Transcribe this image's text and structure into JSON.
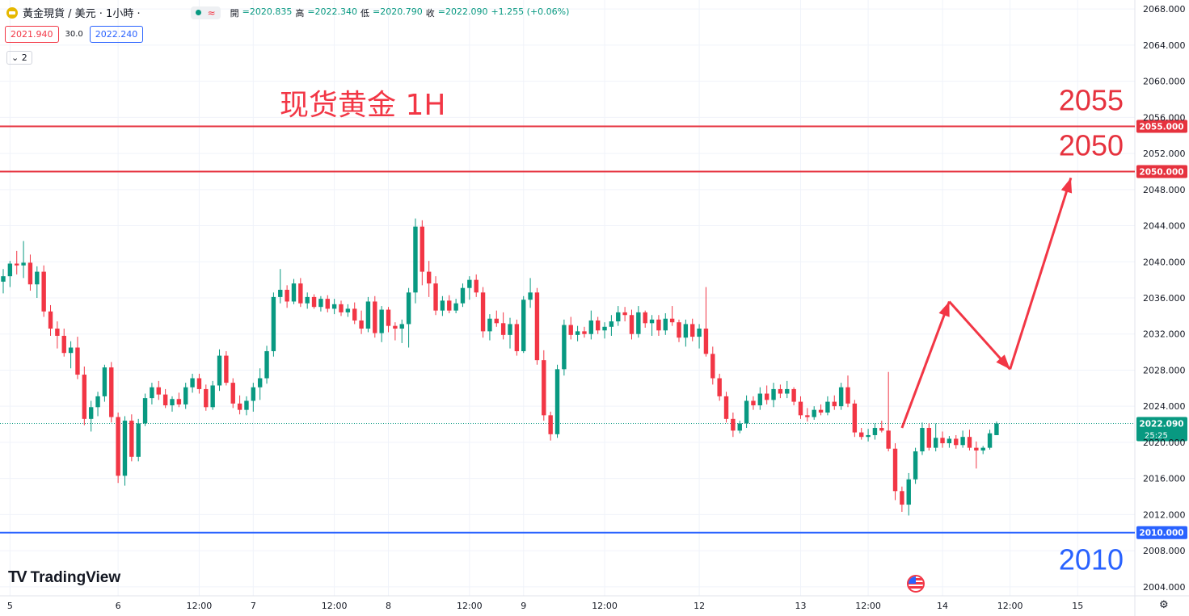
{
  "header": {
    "symbol": "黃金現貨 / 美元 · 1小時 ·",
    "ohlc": {
      "open_label": "開",
      "open": "=2020.835",
      "high_label": "高",
      "high": "=2022.340",
      "low_label": "低",
      "low": "=2020.790",
      "close_label": "收",
      "close": "=2022.090",
      "change": "+1.255 (+0.06%)"
    },
    "sell_price": "2021.940",
    "spread": "30.0",
    "buy_price": "2022.240",
    "indicator_count": "2"
  },
  "brand": {
    "logo_text": "TradingView"
  },
  "colors": {
    "up": "#089981",
    "down": "#f23645",
    "blue": "#2962ff",
    "red_line": "#e6323e",
    "annotation_red": "#f23645"
  },
  "chart_data": {
    "type": "candlestick",
    "title": "现货黄金 1H",
    "ylim": [
      2003,
      2069
    ],
    "y_ticks": [
      "2068.000",
      "2064.000",
      "2060.000",
      "2056.000",
      "2052.000",
      "2048.000",
      "2044.000",
      "2040.000",
      "2036.000",
      "2032.000",
      "2028.000",
      "2024.000",
      "2020.000",
      "2016.000",
      "2012.000",
      "2008.000",
      "2004.000"
    ],
    "x_ticks": [
      {
        "label": "5",
        "i": 1
      },
      {
        "label": "6",
        "i": 17
      },
      {
        "label": "12:00",
        "i": 29
      },
      {
        "label": "7",
        "i": 37
      },
      {
        "label": "12:00",
        "i": 49
      },
      {
        "label": "8",
        "i": 57
      },
      {
        "label": "12:00",
        "i": 69
      },
      {
        "label": "9",
        "i": 77
      },
      {
        "label": "12:00",
        "i": 89
      },
      {
        "label": "12",
        "i": 103
      },
      {
        "label": "13",
        "i": 118
      },
      {
        "label": "12:00",
        "i": 128
      },
      {
        "label": "14",
        "i": 139
      },
      {
        "label": "12:00",
        "i": 149
      },
      {
        "label": "15",
        "i": 159
      }
    ],
    "candles": [
      [
        2037.8,
        2039.2,
        2036.5,
        2038.4
      ],
      [
        2038.4,
        2040.1,
        2037.2,
        2039.8
      ],
      [
        2039.8,
        2041.2,
        2038.6,
        2039.6
      ],
      [
        2039.6,
        2042.3,
        2038.2,
        2039.9
      ],
      [
        2039.9,
        2040.8,
        2036.8,
        2037.5
      ],
      [
        2037.5,
        2039.5,
        2036.0,
        2038.9
      ],
      [
        2038.9,
        2039.6,
        2033.9,
        2034.5
      ],
      [
        2034.5,
        2035.2,
        2031.8,
        2032.6
      ],
      [
        2032.6,
        2033.4,
        2030.4,
        2031.8
      ],
      [
        2031.8,
        2032.6,
        2029.5,
        2029.9
      ],
      [
        2029.9,
        2031.2,
        2028.2,
        2030.5
      ],
      [
        2030.5,
        2031.7,
        2027.0,
        2027.5
      ],
      [
        2027.5,
        2028.4,
        2021.9,
        2022.6
      ],
      [
        2022.6,
        2024.6,
        2021.2,
        2023.9
      ],
      [
        2023.9,
        2025.6,
        2022.9,
        2025.1
      ],
      [
        2025.1,
        2028.6,
        2024.5,
        2028.3
      ],
      [
        2028.3,
        2028.9,
        2022.2,
        2022.8
      ],
      [
        2022.8,
        2023.3,
        2015.5,
        2016.3
      ],
      [
        2016.3,
        2022.9,
        2015.2,
        2022.4
      ],
      [
        2022.4,
        2023.1,
        2017.9,
        2018.4
      ],
      [
        2018.4,
        2022.6,
        2017.9,
        2022.1
      ],
      [
        2022.1,
        2025.4,
        2021.8,
        2024.9
      ],
      [
        2024.9,
        2026.6,
        2024.2,
        2026.1
      ],
      [
        2026.1,
        2026.8,
        2024.7,
        2025.3
      ],
      [
        2025.3,
        2025.9,
        2023.8,
        2024.1
      ],
      [
        2024.1,
        2025.1,
        2023.4,
        2024.8
      ],
      [
        2024.8,
        2025.5,
        2023.9,
        2024.2
      ],
      [
        2024.2,
        2026.6,
        2023.7,
        2026.1
      ],
      [
        2026.1,
        2027.6,
        2025.5,
        2027.1
      ],
      [
        2027.1,
        2027.6,
        2025.4,
        2025.9
      ],
      [
        2025.9,
        2026.4,
        2023.5,
        2023.9
      ],
      [
        2023.9,
        2026.8,
        2023.6,
        2026.3
      ],
      [
        2026.3,
        2030.3,
        2025.7,
        2029.6
      ],
      [
        2029.6,
        2030.1,
        2026.3,
        2026.6
      ],
      [
        2026.6,
        2027.1,
        2023.8,
        2024.3
      ],
      [
        2024.3,
        2025.2,
        2023.1,
        2023.6
      ],
      [
        2023.6,
        2025.1,
        2023.0,
        2024.6
      ],
      [
        2024.6,
        2026.6,
        2023.4,
        2026.1
      ],
      [
        2026.1,
        2028.2,
        2024.7,
        2027.1
      ],
      [
        2027.1,
        2030.7,
        2026.5,
        2030.1
      ],
      [
        2030.1,
        2036.6,
        2029.5,
        2036.1
      ],
      [
        2036.1,
        2039.2,
        2035.4,
        2036.9
      ],
      [
        2036.9,
        2037.4,
        2034.9,
        2035.6
      ],
      [
        2035.6,
        2038.1,
        2035.3,
        2037.6
      ],
      [
        2037.6,
        2038.2,
        2035.0,
        2035.4
      ],
      [
        2035.4,
        2036.6,
        2034.8,
        2036.1
      ],
      [
        2036.1,
        2036.4,
        2034.8,
        2035.0
      ],
      [
        2035.0,
        2036.2,
        2034.5,
        2035.9
      ],
      [
        2035.9,
        2036.3,
        2034.4,
        2034.8
      ],
      [
        2034.8,
        2035.9,
        2034.2,
        2035.3
      ],
      [
        2035.3,
        2035.7,
        2034.0,
        2034.4
      ],
      [
        2034.4,
        2035.3,
        2033.9,
        2034.8
      ],
      [
        2034.8,
        2035.5,
        2033.1,
        2033.5
      ],
      [
        2033.5,
        2034.6,
        2032.0,
        2032.6
      ],
      [
        2032.6,
        2036.1,
        2032.2,
        2035.6
      ],
      [
        2035.6,
        2036.2,
        2031.6,
        2032.1
      ],
      [
        2032.1,
        2035.1,
        2031.1,
        2034.7
      ],
      [
        2034.7,
        2035.0,
        2032.2,
        2032.9
      ],
      [
        2032.9,
        2033.3,
        2031.3,
        2032.6
      ],
      [
        2032.6,
        2033.6,
        2031.0,
        2033.1
      ],
      [
        2033.1,
        2037.1,
        2030.5,
        2036.6
      ],
      [
        2036.6,
        2044.8,
        2035.4,
        2043.9
      ],
      [
        2043.9,
        2044.6,
        2037.4,
        2038.9
      ],
      [
        2038.9,
        2040.1,
        2036.1,
        2037.6
      ],
      [
        2037.6,
        2038.4,
        2034.1,
        2034.6
      ],
      [
        2034.6,
        2036.2,
        2034.0,
        2035.7
      ],
      [
        2035.7,
        2036.3,
        2034.3,
        2034.6
      ],
      [
        2034.6,
        2035.9,
        2034.3,
        2035.4
      ],
      [
        2035.4,
        2037.6,
        2035.0,
        2037.1
      ],
      [
        2037.1,
        2038.4,
        2035.8,
        2038.0
      ],
      [
        2038.0,
        2038.6,
        2036.1,
        2036.6
      ],
      [
        2036.6,
        2037.2,
        2031.6,
        2032.3
      ],
      [
        2032.3,
        2034.2,
        2031.3,
        2033.7
      ],
      [
        2033.7,
        2034.6,
        2032.8,
        2033.2
      ],
      [
        2033.2,
        2034.4,
        2031.4,
        2031.9
      ],
      [
        2031.9,
        2033.8,
        2030.4,
        2033.1
      ],
      [
        2033.1,
        2033.6,
        2029.6,
        2030.1
      ],
      [
        2030.1,
        2036.2,
        2029.9,
        2035.8
      ],
      [
        2035.8,
        2038.2,
        2034.9,
        2036.6
      ],
      [
        2036.6,
        2037.1,
        2028.6,
        2029.1
      ],
      [
        2029.1,
        2030.2,
        2022.4,
        2023.0
      ],
      [
        2023.0,
        2023.4,
        2020.2,
        2020.9
      ],
      [
        2020.9,
        2028.6,
        2020.5,
        2028.1
      ],
      [
        2028.1,
        2033.6,
        2027.4,
        2033.0
      ],
      [
        2033.0,
        2033.9,
        2031.4,
        2031.9
      ],
      [
        2031.9,
        2032.9,
        2031.2,
        2032.3
      ],
      [
        2032.3,
        2032.8,
        2031.6,
        2032.0
      ],
      [
        2032.0,
        2034.6,
        2031.4,
        2033.5
      ],
      [
        2033.5,
        2033.9,
        2032.0,
        2032.4
      ],
      [
        2032.4,
        2033.3,
        2031.5,
        2032.8
      ],
      [
        2032.8,
        2034.1,
        2031.8,
        2033.4
      ],
      [
        2033.4,
        2035.1,
        2032.9,
        2034.4
      ],
      [
        2034.4,
        2035.0,
        2033.4,
        2034.1
      ],
      [
        2034.1,
        2034.7,
        2031.4,
        2032.0
      ],
      [
        2032.0,
        2035.1,
        2031.6,
        2034.4
      ],
      [
        2034.4,
        2034.6,
        2032.7,
        2033.2
      ],
      [
        2033.2,
        2034.1,
        2031.8,
        2033.6
      ],
      [
        2033.6,
        2034.1,
        2031.8,
        2032.4
      ],
      [
        2032.4,
        2034.3,
        2031.9,
        2033.7
      ],
      [
        2033.7,
        2035.1,
        2032.9,
        2033.3
      ],
      [
        2033.3,
        2033.6,
        2031.1,
        2031.6
      ],
      [
        2031.6,
        2033.6,
        2030.6,
        2033.1
      ],
      [
        2033.1,
        2033.7,
        2031.2,
        2031.7
      ],
      [
        2031.7,
        2033.1,
        2030.4,
        2032.6
      ],
      [
        2032.6,
        2037.2,
        2029.5,
        2029.8
      ],
      [
        2029.8,
        2030.6,
        2026.4,
        2027.1
      ],
      [
        2027.1,
        2027.6,
        2024.6,
        2025.1
      ],
      [
        2025.1,
        2025.6,
        2022.2,
        2022.6
      ],
      [
        2022.6,
        2023.3,
        2020.6,
        2021.3
      ],
      [
        2021.3,
        2022.4,
        2021.0,
        2022.1
      ],
      [
        2022.1,
        2025.2,
        2021.6,
        2024.6
      ],
      [
        2024.6,
        2025.1,
        2023.6,
        2024.1
      ],
      [
        2024.1,
        2026.1,
        2023.6,
        2025.4
      ],
      [
        2025.4,
        2026.3,
        2024.2,
        2024.7
      ],
      [
        2024.7,
        2026.6,
        2023.9,
        2025.9
      ],
      [
        2025.9,
        2026.4,
        2024.9,
        2025.4
      ],
      [
        2025.4,
        2026.8,
        2024.9,
        2025.9
      ],
      [
        2025.9,
        2026.1,
        2024.1,
        2024.5
      ],
      [
        2024.5,
        2025.1,
        2022.6,
        2023.0
      ],
      [
        2023.0,
        2023.8,
        2022.3,
        2022.8
      ],
      [
        2022.8,
        2024.0,
        2022.5,
        2023.6
      ],
      [
        2023.6,
        2024.2,
        2023.0,
        2023.3
      ],
      [
        2023.3,
        2025.1,
        2023.0,
        2024.5
      ],
      [
        2024.5,
        2025.2,
        2023.6,
        2024.0
      ],
      [
        2024.0,
        2026.6,
        2023.6,
        2026.1
      ],
      [
        2026.1,
        2027.4,
        2023.9,
        2024.3
      ],
      [
        2024.3,
        2024.7,
        2020.6,
        2021.1
      ],
      [
        2021.1,
        2021.6,
        2020.3,
        2020.6
      ],
      [
        2020.6,
        2021.5,
        2020.1,
        2020.8
      ],
      [
        2020.8,
        2022.1,
        2020.3,
        2021.6
      ],
      [
        2021.6,
        2022.4,
        2021.1,
        2021.3
      ],
      [
        2021.3,
        2027.8,
        2019.0,
        2019.3
      ],
      [
        2019.3,
        2019.9,
        2013.6,
        2014.6
      ],
      [
        2014.6,
        2015.1,
        2012.3,
        2013.1
      ],
      [
        2013.1,
        2016.6,
        2011.9,
        2015.9
      ],
      [
        2015.9,
        2019.4,
        2015.4,
        2019.0
      ],
      [
        2019.0,
        2022.2,
        2018.6,
        2021.6
      ],
      [
        2021.6,
        2022.1,
        2019.1,
        2019.4
      ],
      [
        2019.4,
        2022.1,
        2019.0,
        2020.5
      ],
      [
        2020.5,
        2021.2,
        2019.4,
        2019.9
      ],
      [
        2019.9,
        2020.7,
        2019.4,
        2020.4
      ],
      [
        2020.4,
        2020.8,
        2019.3,
        2019.7
      ],
      [
        2019.7,
        2021.3,
        2019.4,
        2020.6
      ],
      [
        2020.6,
        2021.4,
        2019.1,
        2019.4
      ],
      [
        2019.4,
        2020.1,
        2017.1,
        2019.1
      ],
      [
        2019.1,
        2019.6,
        2018.7,
        2019.4
      ],
      [
        2019.4,
        2021.4,
        2019.2,
        2021.0
      ],
      [
        2020.8,
        2022.3,
        2020.8,
        2022.1
      ]
    ],
    "current_price": {
      "value": "2022.090",
      "countdown": "25:25"
    },
    "horizontal_levels": [
      {
        "value": 2055,
        "label": "2055.000",
        "big_label": "2055",
        "color": "#e6323e"
      },
      {
        "value": 2050,
        "label": "2050.000",
        "big_label": "2050",
        "color": "#e6323e"
      },
      {
        "value": 2010,
        "label": "2010.000",
        "big_label": "2010",
        "color": "#2962ff"
      }
    ],
    "projection_path": [
      [
        133,
        2021.6
      ],
      [
        140,
        2035.6
      ],
      [
        149,
        2028.1
      ],
      [
        158,
        2049.3
      ]
    ]
  }
}
